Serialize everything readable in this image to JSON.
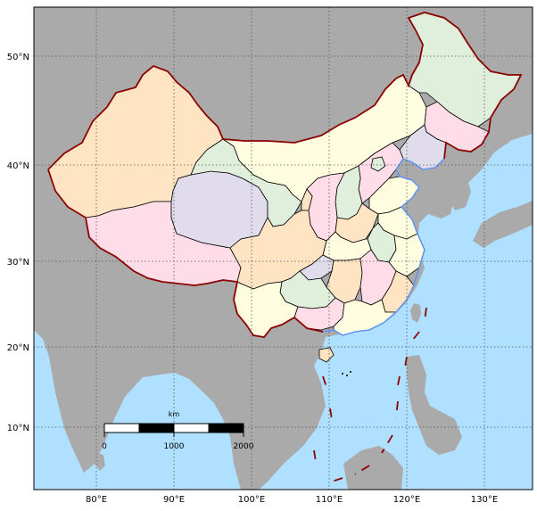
{
  "map": {
    "colors": {
      "ocean": "#b0e0ff",
      "land": "#aaaaaa",
      "border": "#8b0000",
      "coastline": "#6495ed",
      "province_fills": [
        "#ffe4c4",
        "#ffdde8",
        "#fffde0",
        "#e0eedc",
        "#e0dcec"
      ]
    },
    "lon_ticks": [
      "80°E",
      "90°E",
      "100°E",
      "110°E",
      "120°E",
      "130°E"
    ],
    "lat_ticks": [
      "50°N",
      "40°N",
      "30°N",
      "20°N",
      "10°N"
    ],
    "scale_bar": {
      "unit": "km",
      "labels": [
        "0",
        "1000",
        "2000"
      ]
    }
  }
}
